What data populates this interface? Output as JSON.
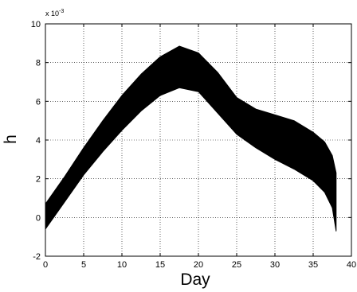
{
  "chart_data": {
    "type": "area",
    "title": "",
    "xlabel": "Day",
    "ylabel": "h",
    "y_scale_note_base": "x 10",
    "y_scale_note_exp": "-3",
    "xlim": [
      0,
      40
    ],
    "ylim": [
      -2,
      10
    ],
    "x_ticks": [
      0,
      5,
      10,
      15,
      20,
      25,
      30,
      35,
      40
    ],
    "y_ticks": [
      -2,
      0,
      2,
      4,
      6,
      8,
      10
    ],
    "grid": true,
    "grid_style": "dotted",
    "fill_color": "#000000",
    "series": [
      {
        "upper": {
          "x": [
            0,
            2.5,
            5,
            7.5,
            10,
            12.5,
            15,
            17.5,
            20,
            22.5,
            25,
            27.5,
            30,
            32.5,
            35,
            36.5,
            37.5,
            38
          ],
          "y": [
            0.7,
            2.1,
            3.6,
            5.0,
            6.3,
            7.4,
            8.3,
            8.85,
            8.5,
            7.5,
            6.2,
            5.6,
            5.3,
            5.0,
            4.4,
            3.9,
            3.2,
            2.3
          ]
        },
        "lower": {
          "x": [
            0,
            2.5,
            5,
            7.5,
            10,
            12.5,
            15,
            17.5,
            20,
            22.5,
            25,
            27.5,
            30,
            32.5,
            35,
            36.5,
            37.5,
            38
          ],
          "y": [
            -0.6,
            0.8,
            2.2,
            3.4,
            4.5,
            5.5,
            6.3,
            6.7,
            6.5,
            5.4,
            4.3,
            3.6,
            3.0,
            2.5,
            1.9,
            1.3,
            0.5,
            -0.7
          ]
        }
      }
    ]
  }
}
